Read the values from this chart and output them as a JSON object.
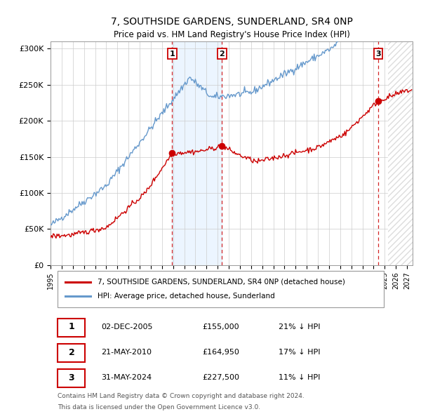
{
  "title": "7, SOUTHSIDE GARDENS, SUNDERLAND, SR4 0NP",
  "subtitle": "Price paid vs. HM Land Registry's House Price Index (HPI)",
  "ylabel_ticks": [
    "£0",
    "£50K",
    "£100K",
    "£150K",
    "£200K",
    "£250K",
    "£300K"
  ],
  "ytick_vals": [
    0,
    50000,
    100000,
    150000,
    200000,
    250000,
    300000
  ],
  "ylim": [
    0,
    310000
  ],
  "xlim_start": 1995.0,
  "xlim_end": 2027.5,
  "sale_years": [
    2005.92,
    2010.38,
    2024.41
  ],
  "sale_prices": [
    155000,
    164950,
    227500
  ],
  "sale_labels": [
    "1",
    "2",
    "3"
  ],
  "legend_house": "7, SOUTHSIDE GARDENS, SUNDERLAND, SR4 0NP (detached house)",
  "legend_hpi": "HPI: Average price, detached house, Sunderland",
  "house_color": "#cc0000",
  "hpi_color": "#6699cc",
  "vline_color": "#cc0000",
  "vline_fill": "#ddeeff",
  "hatch_start": 2025.3,
  "footnote1": "Contains HM Land Registry data © Crown copyright and database right 2024.",
  "footnote2": "This data is licensed under the Open Government Licence v3.0.",
  "table_rows": [
    [
      "1",
      "02-DEC-2005",
      "£155,000",
      "21% ↓ HPI"
    ],
    [
      "2",
      "21-MAY-2010",
      "£164,950",
      "17% ↓ HPI"
    ],
    [
      "3",
      "31-MAY-2024",
      "£227,500",
      "11% ↓ HPI"
    ]
  ],
  "background_color": "#ffffff",
  "grid_color": "#cccccc",
  "figwidth": 6.0,
  "figheight": 5.9,
  "dpi": 100
}
